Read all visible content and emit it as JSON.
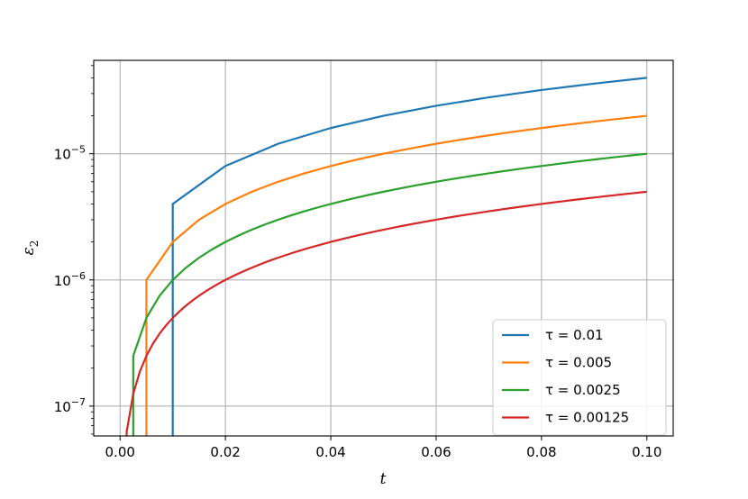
{
  "chart_data": {
    "type": "line",
    "xlabel": "t",
    "ylabel": "ε",
    "ylabel_sub": "2",
    "yscale": "log",
    "xlim": [
      -0.005,
      0.105
    ],
    "ylim": [
      5.8e-08,
      5.5e-05
    ],
    "xticks": [
      0.0,
      0.02,
      0.04,
      0.06,
      0.08,
      0.1
    ],
    "xtick_labels": [
      "0.00",
      "0.02",
      "0.04",
      "0.06",
      "0.08",
      "0.10"
    ],
    "yticks": [
      1e-07,
      1e-06,
      1e-05
    ],
    "ytick_labels": [
      {
        "base": "10",
        "exp": "−7"
      },
      {
        "base": "10",
        "exp": "−6"
      },
      {
        "base": "10",
        "exp": "−5"
      }
    ],
    "grid": true,
    "legend_position": "lower-right",
    "series": [
      {
        "name": "τ = 0.01",
        "color": "#1f77b4",
        "tau": 0.01,
        "coef": 0.0004,
        "x_start": 0.01
      },
      {
        "name": "τ = 0.005",
        "color": "#ff7f0e",
        "tau": 0.005,
        "coef": 0.0002,
        "x_start": 0.005
      },
      {
        "name": "τ = 0.0025",
        "color": "#2ca02c",
        "tau": 0.0025,
        "coef": 0.0001,
        "x_start": 0.0025
      },
      {
        "name": "τ = 0.00125",
        "color": "#d62728",
        "tau": 0.00125,
        "coef": 5e-05,
        "x_start": 0.00125
      }
    ],
    "x_end": 0.1
  }
}
